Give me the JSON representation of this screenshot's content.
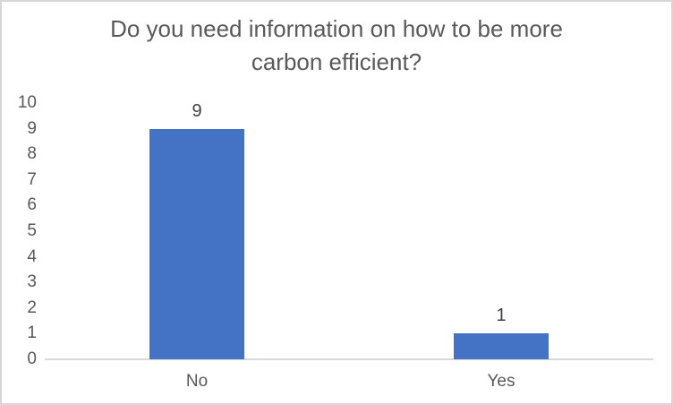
{
  "chart_data": {
    "type": "bar",
    "title": "Do you need information on how to be more carbon efficient?",
    "title_lines": [
      "Do you need information on how to be more",
      "carbon efficient?"
    ],
    "categories": [
      "No",
      "Yes"
    ],
    "values": [
      9,
      1
    ],
    "data_labels": [
      "9",
      "1"
    ],
    "xlabel": "",
    "ylabel": "",
    "ylim": [
      0,
      10
    ],
    "yticks": [
      0,
      1,
      2,
      3,
      4,
      5,
      6,
      7,
      8,
      9,
      10
    ],
    "grid": false,
    "legend": "none",
    "colors": {
      "bar": "#4472C4",
      "axis_line": "#D9D9D9",
      "axis_text": "#595959",
      "title_text": "#595959",
      "data_label_text": "#404040",
      "frame_border": "#D7D7D7"
    }
  }
}
